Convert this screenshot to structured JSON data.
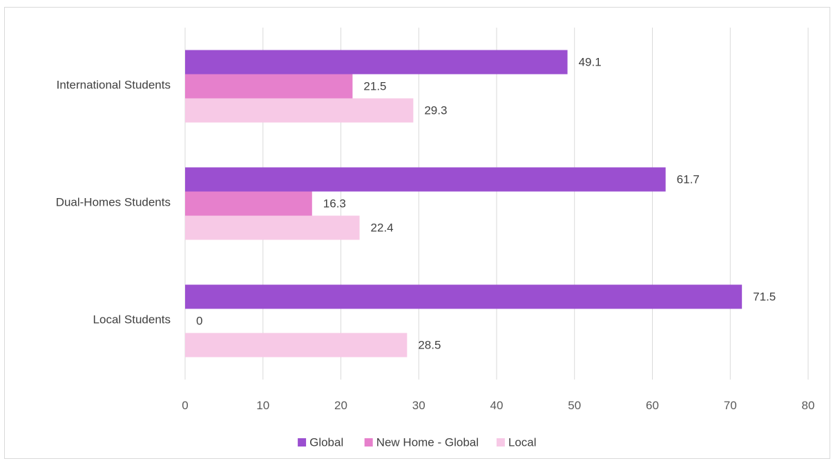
{
  "chart_data": {
    "type": "bar",
    "orientation": "horizontal",
    "title": "",
    "xlabel": "",
    "ylabel": "",
    "categories": [
      "International Students",
      "Dual-Homes Students",
      "Local Students"
    ],
    "series": [
      {
        "name": "Global",
        "color": "#9b4fd0",
        "values": [
          49.1,
          61.7,
          71.5
        ]
      },
      {
        "name": "New Home - Global",
        "color": "#e680cc",
        "values": [
          21.5,
          16.3,
          0
        ]
      },
      {
        "name": "Local",
        "color": "#f7c9e6",
        "values": [
          29.3,
          22.4,
          28.5
        ]
      }
    ],
    "xlim": [
      0,
      80
    ],
    "xticks": [
      0,
      10,
      20,
      30,
      40,
      50,
      60,
      70,
      80
    ],
    "grid": "vertical",
    "legend_position": "bottom",
    "data_labels": true
  }
}
